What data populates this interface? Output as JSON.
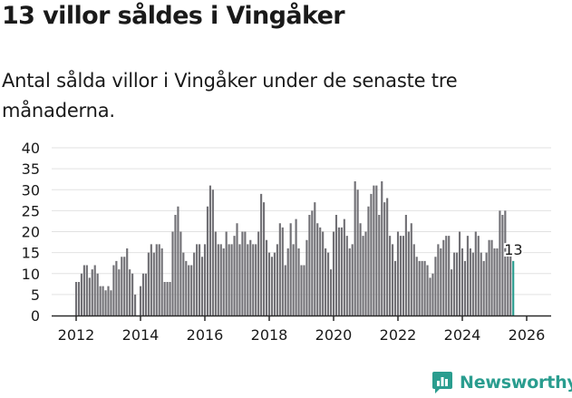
{
  "title": "13 villor såldes i Vingåker",
  "subtitle": "Antal sålda villor i Vingåker under de senaste tre månaderna.",
  "brand": {
    "name": "Newsworthy",
    "icon": "newsworthy-logo-icon"
  },
  "colors": {
    "bar": "#717075",
    "highlight": "#2a9d8f",
    "grid": "#e2e2e2",
    "axis": "#2b2b2b",
    "text": "#1a1a1a"
  },
  "chart_data": {
    "type": "bar",
    "title": "Antal sålda villor i Vingåker under de senaste tre månaderna.",
    "xlabel": "",
    "ylabel": "",
    "ylim": [
      0,
      40
    ],
    "y_ticks": [
      0,
      5,
      10,
      15,
      20,
      25,
      30,
      35,
      40
    ],
    "x_ticks": [
      2012,
      2014,
      2016,
      2018,
      2020,
      2022,
      2024,
      2026
    ],
    "grid": true,
    "start_year": 2012,
    "start_month": 1,
    "values": [
      8,
      8,
      10,
      12,
      12,
      9,
      11,
      12,
      10,
      7,
      7,
      6,
      7,
      6,
      12,
      13,
      11,
      14,
      14,
      16,
      11,
      10,
      5,
      0,
      7,
      10,
      10,
      15,
      17,
      15,
      17,
      17,
      16,
      8,
      8,
      8,
      20,
      24,
      26,
      20,
      15,
      13,
      12,
      12,
      15,
      17,
      17,
      14,
      17,
      26,
      31,
      30,
      20,
      17,
      17,
      16,
      20,
      17,
      17,
      19,
      22,
      17,
      20,
      20,
      17,
      18,
      17,
      17,
      20,
      29,
      27,
      18,
      15,
      14,
      15,
      17,
      22,
      21,
      12,
      16,
      22,
      17,
      23,
      16,
      12,
      12,
      18,
      24,
      25,
      27,
      22,
      21,
      20,
      16,
      15,
      11,
      20,
      24,
      21,
      21,
      23,
      19,
      16,
      17,
      32,
      30,
      22,
      19,
      20,
      26,
      29,
      31,
      31,
      24,
      32,
      27,
      28,
      19,
      17,
      13,
      20,
      19,
      19,
      24,
      20,
      22,
      17,
      14,
      13,
      13,
      13,
      12,
      9,
      10,
      14,
      17,
      16,
      18,
      19,
      19,
      11,
      15,
      15,
      20,
      16,
      13,
      19,
      16,
      15,
      20,
      19,
      15,
      13,
      15,
      18,
      18,
      16,
      16,
      25,
      24,
      25,
      15,
      15,
      13
    ],
    "highlight": {
      "period": "2026-02",
      "value": 13,
      "label": "13"
    }
  }
}
